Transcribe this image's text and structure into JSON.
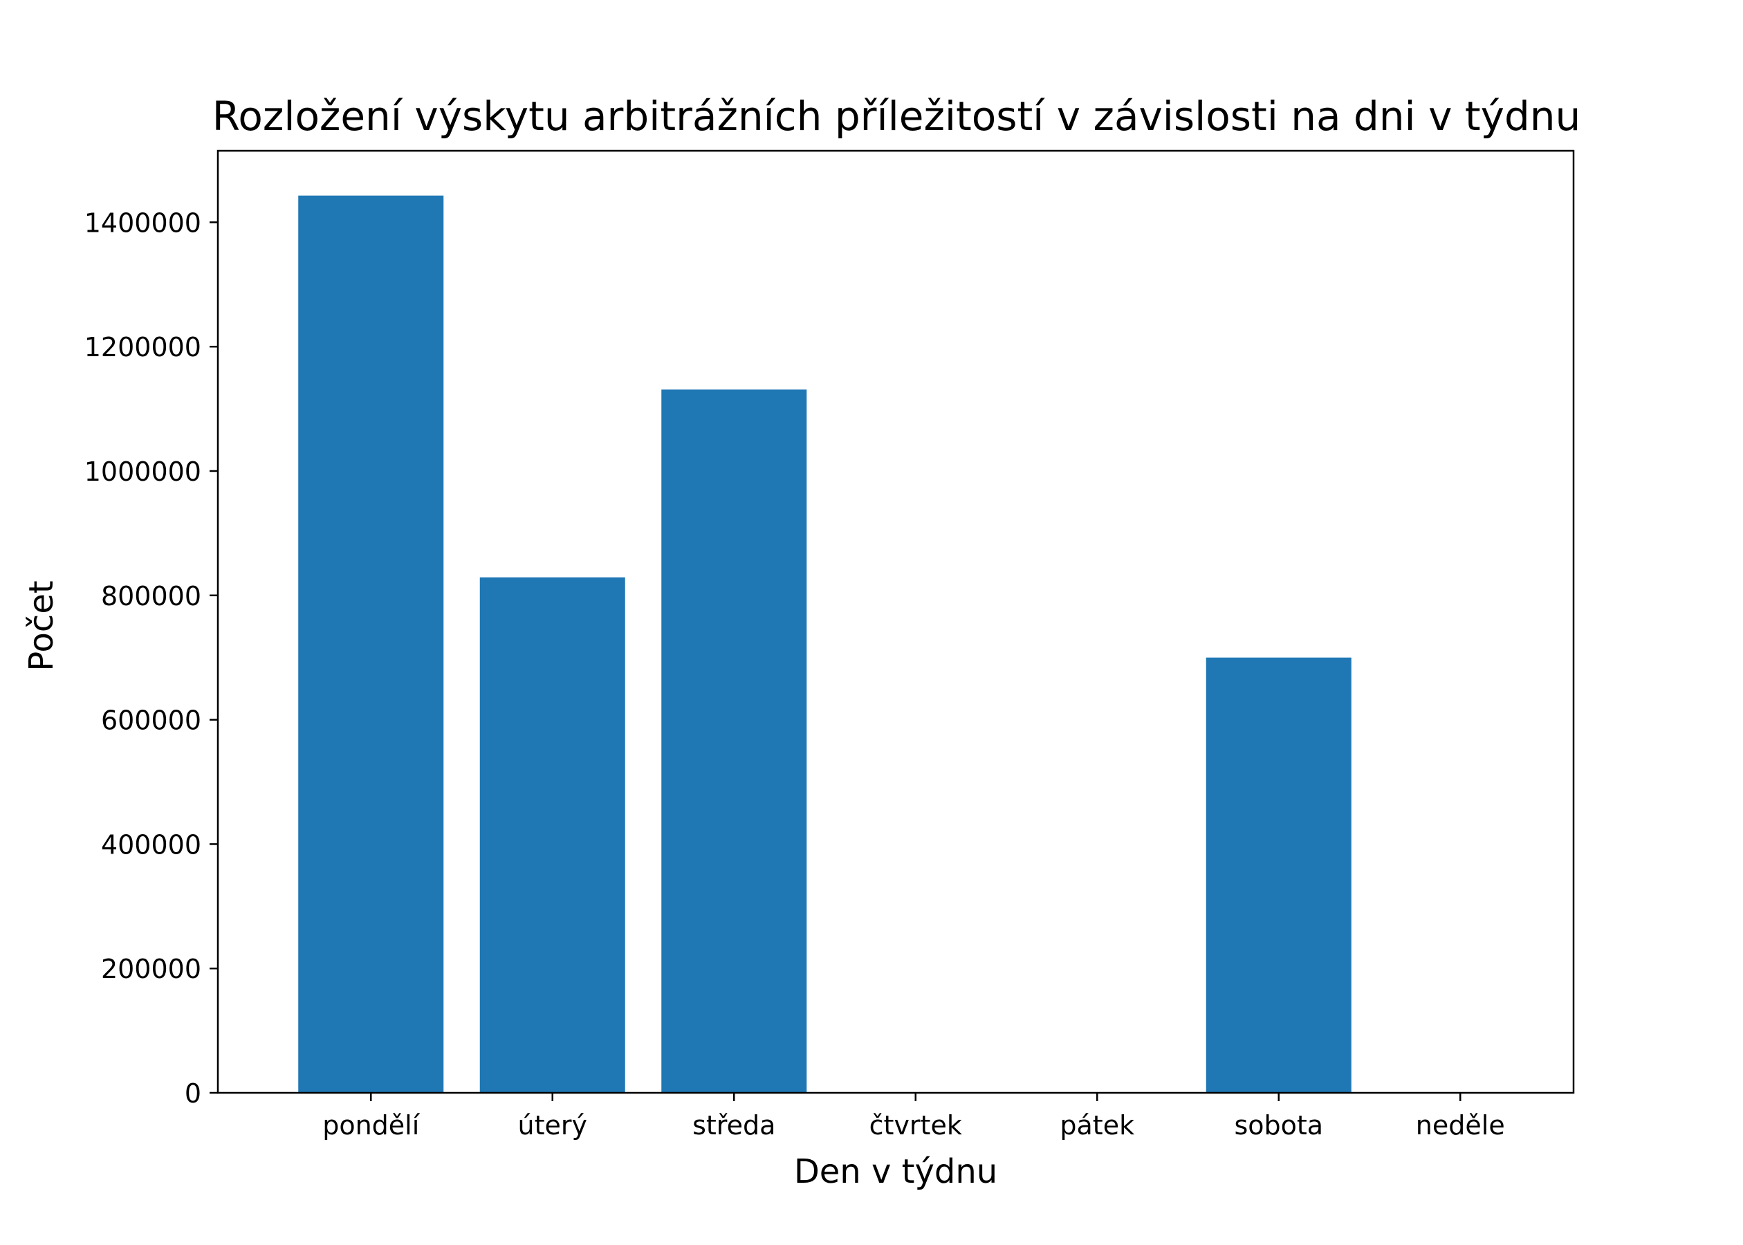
{
  "chart_data": {
    "type": "bar",
    "title": "Rozložení výskytu arbitrážních příležitostí v závislosti na dni v týdnu",
    "xlabel": "Den v týdnu",
    "ylabel": "Počet",
    "categories": [
      "pondělí",
      "úterý",
      "středa",
      "čtvrtek",
      "pátek",
      "sobota",
      "neděle"
    ],
    "values": [
      1443000,
      829000,
      1131000,
      0,
      0,
      700000,
      0
    ],
    "ylim": [
      0,
      1515000
    ],
    "yticks": [
      0,
      200000,
      400000,
      600000,
      800000,
      1000000,
      1200000,
      1400000
    ],
    "ytick_labels": [
      "0",
      "200000",
      "400000",
      "600000",
      "800000",
      "1000000",
      "1200000",
      "1400000"
    ],
    "grid": false,
    "legend": "none",
    "bar_color": "#1f77b4"
  }
}
